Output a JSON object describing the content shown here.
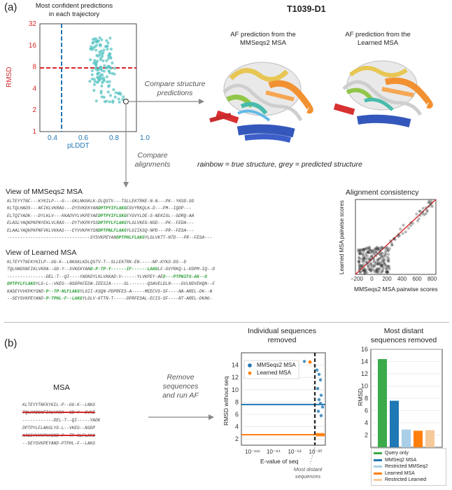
{
  "panel_a": {
    "label": "(a)",
    "scatter_title": "Most confident predictions\nin each trajectory",
    "scatter": {
      "ylabel": "RMSD",
      "xlabel": "pLDDT",
      "yticks": [
        "32",
        "16",
        "8",
        "4",
        "2",
        "1"
      ],
      "xticks": [
        "0.4",
        "0.6",
        "0.8",
        "1.0"
      ],
      "vline_color": "#1f77b4",
      "hline_color": "#d62728",
      "point_color": "#5bc4c4"
    },
    "target_title": "T1039-D1",
    "af_mmseqs_label": "AF prediction from the\nMMSeqs2 MSA",
    "af_learned_label": "AF prediction from the\nLearned MSA",
    "compare_structures": "Compare structure\npredictions",
    "compare_alignments": "Compare\nalignments",
    "structure_caption": "rainbow = true structure, grey = predicted structure",
    "mmseqs_view_title": "View of MMSeqs2 MSA",
    "mmseqs_lines": [
      [
        "KLTEYYTNF---KYKILP---G---GKLNKGKLK-DLQSTV---TSLLEKTRKE-N-N---PK--YKSD-SD",
        ""
      ],
      [
        "KLTQLHADS---NFIKLVKRAG---DYSVKEKYAN",
        "DPTPYIFLAKG",
        "FGVYRKQLK-D---PM--IQDP---"
      ],
      [
        "ELTQIYADK---DYLKLV---KKADVYLVKPEYAE",
        "DPTPYIFLSKG",
        "FYGVYLDE-S-NEKIGL--GDRQ-AA"
      ],
      [
        "ELASLYAQKPKPNYEKLVLRAS---DYTVKPKYSS",
        "DPTPYLFLAKG",
        "YLGLVKEG-NSD---PK--FEDA---"
      ],
      [
        "ELAALYAQKPKPNFVKLVKKAS---EYVVKPKYSN",
        "DPTPNLFLAKG",
        "YLGIIKSQ-NPD---PR--FESA---"
      ],
      [
        "--------------------------------SYSVKPEYAN",
        "DPTPHLFLAKG",
        "YLGLVKTT-NTD---PR--FESA---"
      ]
    ],
    "learned_view_title": "View of Learned MSA",
    "learned_lines": [
      [
        "KLTEYYTNFKYKILP--GG-K--LNKGKLKDLQSTV-T--SLLEKTRK-EN-----NP-KYKS-DS--D",
        "",
        ""
      ],
      [
        "TQLHADSNFIKLVKRA--GD-Y--SVKEKYAN",
        "D-P-TP-Y------IF------LAKG",
        "LF-GVYRKQ-L-KDPM-IQ--D"
      ],
      [
        "---------------DEL-T--QI----YADKDYLKLVKKAD-V------YLVKPEY-AE",
        "D---PTPNIFS-AK--G",
        ""
      ],
      [
        "",
        "DPTPYLFLAKG",
        "YLG-L--VKEG--NSDPKFEDA-IEESIA-----SL-------QSAVELDLN----GVLNDVEHQN--F"
      ],
      [
        "KASEYVVKPKYSND",
        "-P--TP-NLFLAKG",
        "YLGII-KSQN-PDPRFES-A-----MEECVS-SF----NA-AREL-DK--N"
      ],
      [
        "--SEYSVKPEYAND",
        "-P-TPHL-F--LAKG",
        "YLGLV-KTTN-T-----DPRFESAL-ECIS-SF----NT-AREL-DKNG-"
      ]
    ],
    "consistency": {
      "title": "Alignment consistency",
      "xlabel": "MMSeqs2 MSA pairwise scores",
      "ylabel": "Learned MSA pairwise scores",
      "xticks": [
        "−200",
        "0",
        "200",
        "400",
        "600",
        "800"
      ],
      "line_color": "#d62728"
    }
  },
  "panel_b": {
    "label": "(b)",
    "msa_title": "MSA",
    "msa_lines": [
      {
        "text": "KLTEYYTNFKYKIL-P--GG-K--LNKG",
        "struck": false
      },
      {
        "text": "TQLHADSNFIKLVKRA--GD-Y--SVKE",
        "struck": true
      },
      {
        "text": "------------DEL-T--QI-----YADK",
        "struck": false
      },
      {
        "text": "DPTPYLFLAKGLYG-L--VKEG--NSDP",
        "struck": false
      },
      {
        "text": "KASEYVVKPKYSND-P--TP-NLFLAKG",
        "struck": true
      },
      {
        "text": "--SEYSVKPEYAND-PTPHL-F--LAKG",
        "struck": false
      }
    ],
    "remove_label": "Remove\nsequences\nand run AF",
    "individual_title": "Individual sequences\nremoved",
    "individual": {
      "ylabel": "RMSD without seq",
      "xlabel": "E-value of seq",
      "yticks": [
        "14",
        "12",
        "10",
        "8",
        "6",
        "4",
        "2"
      ],
      "xticks": [
        "10⁻¹¹⁶",
        "10⁻⁸⁴",
        "10⁻⁵²",
        "10⁻²⁰"
      ],
      "legend": [
        "MMSeqs2 MSA",
        "Learned MSA"
      ],
      "mmseqs_color": "#1f77b4",
      "learned_color": "#ff7f0e",
      "annotation": "Most distant\nsequences"
    },
    "distant_title": "Most distant\nsequences removed",
    "distant": {
      "ylabel": "RMSD",
      "yticks": [
        "16",
        "14",
        "12",
        "10",
        "8",
        "6",
        "4",
        "2"
      ]
    },
    "chart_data": {
      "type": "bar",
      "categories": [
        "Query only",
        "MMSeq2 MSA",
        "Restricted MMSeq2",
        "Learned MSA",
        "Restricted Learned"
      ],
      "values": [
        14.4,
        7.6,
        2.9,
        2.7,
        2.8
      ],
      "colors": [
        "#3aaa4a",
        "#1f77b4",
        "#a9cfe8",
        "#ff7f0e",
        "#f6c99a"
      ],
      "ylim": [
        0,
        16
      ],
      "ylabel": "RMSD",
      "legend_placement": "bottom"
    }
  }
}
